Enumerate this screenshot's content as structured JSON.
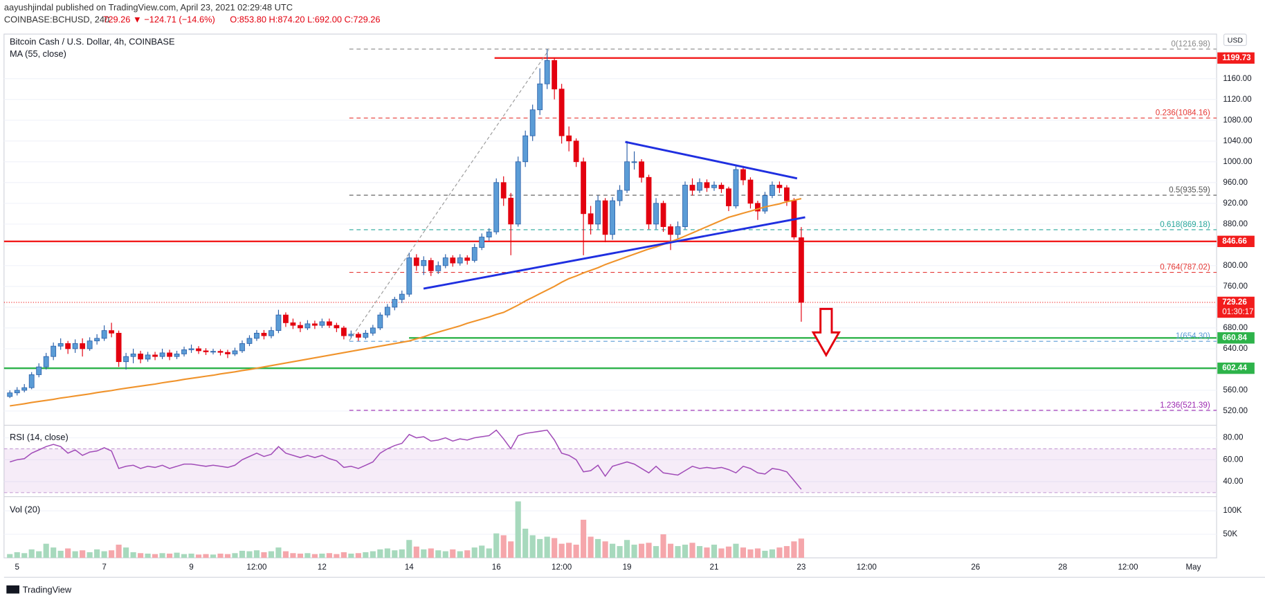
{
  "header": {
    "published": "aayushjindal published on TradingView.com, April 23, 2021 02:29:48 UTC",
    "symbol": "COINBASE:BCHUSD, 240",
    "change": "729.26 ▼ −124.71 (−14.6%)",
    "ohlc": "O:853.80 H:874.20 L:692.00 C:729.26",
    "currency": "USD",
    "brand": "TradingView"
  },
  "chart_data": [
    {
      "type": "candlestick",
      "title": "Bitcoin Cash / U.S. Dollar, 4h, COINBASE",
      "up_color": "#5b9cd6",
      "down_color": "#e3000f",
      "xlim": [
        -0.8,
        166.2
      ],
      "xticks": [
        {
          "value": 1,
          "label": "5"
        },
        {
          "value": 13,
          "label": "7"
        },
        {
          "value": 25,
          "label": "9"
        },
        {
          "value": 34,
          "label": "12:00"
        },
        {
          "value": 43,
          "label": "12"
        },
        {
          "value": 55,
          "label": "14"
        },
        {
          "value": 67,
          "label": "16"
        },
        {
          "value": 76,
          "label": "12:00"
        },
        {
          "value": 85,
          "label": "19"
        },
        {
          "value": 97,
          "label": "21"
        },
        {
          "value": 109,
          "label": "23"
        },
        {
          "value": 118,
          "label": "12:00"
        },
        {
          "value": 133,
          "label": "26"
        },
        {
          "value": 145,
          "label": "28"
        },
        {
          "value": 154,
          "label": "12:00"
        },
        {
          "value": 163,
          "label": "May"
        }
      ],
      "ylim": [
        493.4,
        1245.9
      ],
      "yticks": [
        {
          "value": 520,
          "label": "520.00"
        },
        {
          "value": 560,
          "label": "560.00"
        },
        {
          "value": 600,
          "label": "600.00"
        },
        {
          "value": 640,
          "label": "640.00"
        },
        {
          "value": 680,
          "label": "680.00"
        },
        {
          "value": 720,
          "label": "720.00"
        },
        {
          "value": 760,
          "label": "760.00"
        },
        {
          "value": 800,
          "label": "800.00"
        },
        {
          "value": 840,
          "label": "840.00"
        },
        {
          "value": 880,
          "label": "880.00"
        },
        {
          "value": 920,
          "label": "920.00"
        },
        {
          "value": 960,
          "label": "960.00"
        },
        {
          "value": 1000,
          "label": "1000.00"
        },
        {
          "value": 1040,
          "label": "1040.00"
        },
        {
          "value": 1080,
          "label": "1080.00"
        },
        {
          "value": 1120,
          "label": "1120.00"
        },
        {
          "value": 1160,
          "label": "1160.00"
        }
      ],
      "grid": true,
      "ohlc": [
        [
          548,
          560,
          545,
          555
        ],
        [
          555,
          566,
          550,
          560
        ],
        [
          560,
          572,
          556,
          565
        ],
        [
          565,
          595,
          562,
          590
        ],
        [
          590,
          612,
          585,
          605
        ],
        [
          605,
          632,
          600,
          625
        ],
        [
          625,
          652,
          618,
          645
        ],
        [
          645,
          660,
          638,
          650
        ],
        [
          650,
          655,
          630,
          640
        ],
        [
          640,
          658,
          632,
          650
        ],
        [
          650,
          660,
          625,
          640
        ],
        [
          640,
          662,
          636,
          655
        ],
        [
          655,
          668,
          648,
          660
        ],
        [
          660,
          685,
          655,
          675
        ],
        [
          675,
          690,
          662,
          670
        ],
        [
          670,
          675,
          605,
          615
        ],
        [
          615,
          632,
          600,
          625
        ],
        [
          625,
          640,
          612,
          630
        ],
        [
          630,
          636,
          612,
          620
        ],
        [
          620,
          634,
          615,
          628
        ],
        [
          628,
          634,
          618,
          625
        ],
        [
          625,
          640,
          620,
          632
        ],
        [
          632,
          638,
          618,
          625
        ],
        [
          625,
          636,
          620,
          630
        ],
        [
          630,
          644,
          625,
          638
        ],
        [
          638,
          648,
          632,
          640
        ],
        [
          640,
          645,
          630,
          636
        ],
        [
          636,
          641,
          628,
          634
        ],
        [
          634,
          640,
          629,
          635
        ],
        [
          635,
          639,
          627,
          633
        ],
        [
          633,
          638,
          622,
          630
        ],
        [
          630,
          642,
          626,
          636
        ],
        [
          636,
          656,
          632,
          650
        ],
        [
          650,
          666,
          645,
          660
        ],
        [
          660,
          676,
          655,
          670
        ],
        [
          670,
          676,
          658,
          665
        ],
        [
          665,
          682,
          660,
          675
        ],
        [
          675,
          715,
          670,
          705
        ],
        [
          705,
          710,
          682,
          690
        ],
        [
          690,
          698,
          678,
          685
        ],
        [
          685,
          692,
          672,
          680
        ],
        [
          680,
          695,
          676,
          688
        ],
        [
          688,
          694,
          678,
          685
        ],
        [
          685,
          698,
          680,
          692
        ],
        [
          692,
          698,
          680,
          685
        ],
        [
          685,
          690,
          672,
          680
        ],
        [
          680,
          684,
          658,
          665
        ],
        [
          665,
          675,
          660,
          668
        ],
        [
          668,
          672,
          655,
          662
        ],
        [
          662,
          676,
          658,
          670
        ],
        [
          670,
          686,
          665,
          680
        ],
        [
          680,
          710,
          676,
          705
        ],
        [
          705,
          726,
          700,
          720
        ],
        [
          720,
          740,
          714,
          735
        ],
        [
          735,
          752,
          728,
          745
        ],
        [
          745,
          825,
          740,
          815
        ],
        [
          815,
          822,
          790,
          800
        ],
        [
          800,
          818,
          782,
          810
        ],
        [
          810,
          815,
          780,
          790
        ],
        [
          790,
          808,
          784,
          800
        ],
        [
          800,
          822,
          795,
          815
        ],
        [
          815,
          820,
          798,
          805
        ],
        [
          805,
          822,
          800,
          815
        ],
        [
          815,
          820,
          802,
          810
        ],
        [
          810,
          842,
          806,
          835
        ],
        [
          835,
          862,
          830,
          855
        ],
        [
          855,
          872,
          848,
          865
        ],
        [
          865,
          968,
          860,
          960
        ],
        [
          960,
          972,
          915,
          930
        ],
        [
          930,
          940,
          820,
          880
        ],
        [
          880,
          1010,
          875,
          1000
        ],
        [
          1000,
          1060,
          990,
          1050
        ],
        [
          1050,
          1110,
          1040,
          1100
        ],
        [
          1100,
          1180,
          1090,
          1150
        ],
        [
          1150,
          1216.98,
          1140,
          1195
        ],
        [
          1195,
          1200,
          1120,
          1140
        ],
        [
          1140,
          1150,
          1035,
          1050
        ],
        [
          1050,
          1068,
          1020,
          1040
        ],
        [
          1040,
          1045,
          990,
          1000
        ],
        [
          1000,
          1008,
          820,
          900
        ],
        [
          900,
          915,
          860,
          880
        ],
        [
          880,
          935,
          870,
          925
        ],
        [
          925,
          930,
          845,
          860
        ],
        [
          860,
          932,
          850,
          925
        ],
        [
          925,
          955,
          915,
          945
        ],
        [
          945,
          1040,
          940,
          1000
        ],
        [
          1000,
          1020,
          985,
          1000
        ],
        [
          1000,
          1005,
          960,
          970
        ],
        [
          970,
          975,
          870,
          880
        ],
        [
          880,
          930,
          870,
          920
        ],
        [
          920,
          925,
          865,
          875
        ],
        [
          875,
          880,
          830,
          860
        ],
        [
          860,
          885,
          850,
          875
        ],
        [
          875,
          962,
          870,
          955
        ],
        [
          955,
          968,
          935,
          945
        ],
        [
          945,
          968,
          940,
          960
        ],
        [
          960,
          966,
          942,
          950
        ],
        [
          950,
          962,
          944,
          955
        ],
        [
          955,
          960,
          940,
          948
        ],
        [
          948,
          952,
          905,
          915
        ],
        [
          915,
          995,
          910,
          985
        ],
        [
          985,
          992,
          955,
          965
        ],
        [
          965,
          970,
          910,
          920
        ],
        [
          920,
          925,
          888,
          905
        ],
        [
          905,
          942,
          900,
          935
        ],
        [
          935,
          962,
          930,
          955
        ],
        [
          955,
          962,
          940,
          950
        ],
        [
          950,
          955,
          915,
          925
        ],
        [
          925,
          930,
          850,
          855
        ],
        [
          853.8,
          874.2,
          692,
          729.26
        ]
      ],
      "series": [
        {
          "name": "MA (55, close)",
          "color": "#f0932b",
          "values": [
            530,
            532,
            534,
            536.5,
            538.5,
            540.5,
            542.5,
            545,
            547,
            549,
            551,
            553,
            555.5,
            557.5,
            559.5,
            562,
            564,
            566,
            568,
            570,
            572,
            574.5,
            576.5,
            578.5,
            581,
            583,
            585,
            587,
            589,
            591.5,
            593.5,
            595.5,
            598,
            600,
            602.5,
            605,
            607.5,
            610,
            612.5,
            615,
            617.5,
            620,
            622.5,
            625,
            627.5,
            630,
            632.5,
            635,
            637.5,
            640,
            642.5,
            645,
            647.5,
            650,
            652.5,
            655,
            659,
            663,
            668,
            672,
            676,
            680,
            684,
            689,
            693,
            697,
            701,
            706,
            710,
            717,
            724,
            732,
            739,
            746,
            753,
            760,
            768,
            775,
            780,
            786,
            791,
            796,
            802,
            807,
            812,
            817,
            822,
            827,
            832,
            836,
            841,
            846,
            851,
            857,
            863,
            869,
            875,
            881,
            887,
            893,
            897,
            901,
            905,
            909,
            913,
            916,
            919,
            923,
            926,
            929
          ]
        }
      ],
      "levels": [
        {
          "value": 1199.73,
          "label": "1199.73",
          "color": "#f21c1c"
        },
        {
          "value": 846.66,
          "label": "846.66",
          "color": "#f21c1c"
        },
        {
          "value": 660.84,
          "label": "660.84",
          "color": "#2db34a"
        },
        {
          "value": 602.44,
          "label": "602.44",
          "color": "#2db34a"
        }
      ],
      "last_price": {
        "value": 729.26,
        "label": "729.26",
        "countdown": "01:30:17",
        "color": "#f21c1c"
      },
      "fib": [
        {
          "value": 1216.98,
          "label": "0(1216.98)",
          "color": "#888888"
        },
        {
          "value": 1084.16,
          "label": "0.236(1084.16)",
          "color": "#e53935"
        },
        {
          "value": 935.59,
          "label": "0.5(935.59)",
          "color": "#555555"
        },
        {
          "value": 869.18,
          "label": "0.618(869.18)",
          "color": "#26a69a"
        },
        {
          "value": 787.02,
          "label": "0.764(787.02)",
          "color": "#e53935"
        },
        {
          "value": 654.3,
          "label": "1(654.30)",
          "color": "#5b9cd6"
        },
        {
          "value": 521.39,
          "label": "1.236(521.39)",
          "color": "#9c27b0"
        }
      ]
    },
    {
      "type": "line",
      "title": "RSI (14, close)",
      "color": "#a14cb8",
      "ylim": [
        26.7,
        91.1
      ],
      "band": [
        30,
        70
      ],
      "yticks": [
        {
          "value": 40,
          "label": "40.00"
        },
        {
          "value": 60,
          "label": "60.00"
        },
        {
          "value": 80,
          "label": "80.00"
        }
      ],
      "values": [
        58,
        60,
        61,
        66,
        69,
        72,
        74,
        72,
        66,
        69,
        64,
        67,
        68,
        71,
        68,
        52,
        54,
        55,
        52,
        54,
        53,
        55,
        52,
        54,
        56,
        56,
        55,
        54,
        55,
        54,
        53,
        55,
        60,
        63,
        66,
        63,
        65,
        72,
        66,
        64,
        62,
        64,
        62,
        64,
        61,
        59,
        53,
        54,
        52,
        55,
        58,
        66,
        70,
        73,
        75,
        83,
        80,
        81,
        77,
        78,
        80,
        77,
        79,
        78,
        80,
        81,
        82,
        87,
        79,
        70,
        82,
        84,
        85,
        86,
        87,
        78,
        66,
        64,
        60,
        49,
        50,
        55,
        45,
        54,
        56,
        58,
        56,
        52,
        48,
        54,
        48,
        47,
        46,
        50,
        54,
        52,
        53,
        52,
        53,
        51,
        48,
        54,
        52,
        48,
        47,
        52,
        51,
        49,
        41,
        33
      ]
    },
    {
      "type": "bar",
      "title": "Vol (20)",
      "up_color": "#a7d9bd",
      "down_color": "#f5a6ab",
      "ylim": [
        0,
        129300
      ],
      "yticks": [
        {
          "value": 50000,
          "label": "50K"
        },
        {
          "value": 100000,
          "label": "100K"
        }
      ],
      "values": [
        8000,
        12000,
        10000,
        18000,
        14000,
        30000,
        22000,
        15000,
        20000,
        14000,
        16000,
        12000,
        18000,
        14000,
        16000,
        28000,
        22000,
        12000,
        10000,
        9000,
        8000,
        10000,
        9000,
        11000,
        8000,
        9000,
        7000,
        8000,
        7000,
        9000,
        8000,
        10000,
        15000,
        14000,
        16000,
        12000,
        14000,
        22000,
        14000,
        10000,
        9000,
        10000,
        8000,
        9000,
        10000,
        8000,
        12000,
        9000,
        10000,
        12000,
        14000,
        18000,
        20000,
        16000,
        18000,
        38000,
        24000,
        18000,
        20000,
        16000,
        14000,
        18000,
        14000,
        16000,
        22000,
        26000,
        20000,
        52000,
        48000,
        35000,
        120000,
        62000,
        48000,
        40000,
        45000,
        42000,
        30000,
        32000,
        28000,
        81000,
        45000,
        40000,
        35000,
        30000,
        25000,
        38000,
        28000,
        30000,
        32000,
        25000,
        50000,
        30000,
        25000,
        28000,
        32000,
        25000,
        22000,
        28000,
        20000,
        24000,
        30000,
        22000,
        18000,
        20000,
        15000,
        18000,
        22000,
        25000,
        35000,
        41000
      ]
    }
  ]
}
